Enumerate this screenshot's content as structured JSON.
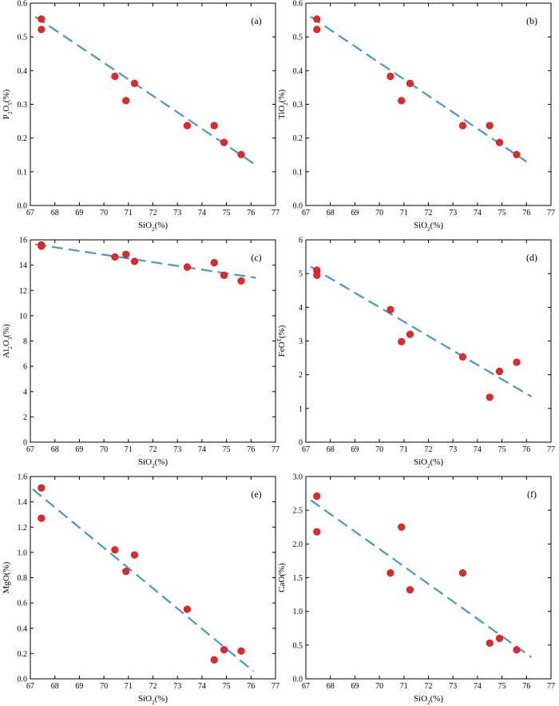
{
  "colors": {
    "point": "#e8262a",
    "point_edge": "#b51d1d",
    "trend": "#3f9ad4",
    "frame": "#000000"
  },
  "chart_data": [
    {
      "type": "scatter",
      "panel": "(a)",
      "xlabel": "SiO₂(%)",
      "ylabel": "P₂O₅(%)",
      "xlim": [
        67,
        77
      ],
      "ylim": [
        0,
        0.6
      ],
      "xticks": [
        "67",
        "68",
        "69",
        "70",
        "71",
        "72",
        "73",
        "74",
        "75",
        "76",
        "77"
      ],
      "yticks": [
        "0.0",
        "0.1",
        "0.2",
        "0.3",
        "0.4",
        "0.5",
        "0.6"
      ],
      "points": [
        {
          "x": 67.45,
          "y": 0.553
        },
        {
          "x": 67.45,
          "y": 0.522
        },
        {
          "x": 70.45,
          "y": 0.383
        },
        {
          "x": 70.9,
          "y": 0.311
        },
        {
          "x": 71.25,
          "y": 0.362
        },
        {
          "x": 73.4,
          "y": 0.237
        },
        {
          "x": 74.5,
          "y": 0.237
        },
        {
          "x": 74.9,
          "y": 0.187
        },
        {
          "x": 75.6,
          "y": 0.151
        }
      ],
      "trend": {
        "x0": 67.2,
        "y0": 0.56,
        "x1": 76.2,
        "y1": 0.12
      }
    },
    {
      "type": "scatter",
      "panel": "(b)",
      "xlabel": "SiO₂(%)",
      "ylabel": "TiO₂(%)",
      "xlim": [
        67,
        77
      ],
      "ylim": [
        0,
        0.6
      ],
      "xticks": [
        "67",
        "68",
        "69",
        "70",
        "71",
        "72",
        "73",
        "74",
        "75",
        "76",
        "77"
      ],
      "yticks": [
        "0.0",
        "0.1",
        "0.2",
        "0.3",
        "0.4",
        "0.5",
        "0.6"
      ],
      "points": [
        {
          "x": 67.45,
          "y": 0.553
        },
        {
          "x": 67.45,
          "y": 0.522
        },
        {
          "x": 70.45,
          "y": 0.383
        },
        {
          "x": 70.9,
          "y": 0.311
        },
        {
          "x": 71.25,
          "y": 0.362
        },
        {
          "x": 73.4,
          "y": 0.237
        },
        {
          "x": 74.5,
          "y": 0.237
        },
        {
          "x": 74.9,
          "y": 0.187
        },
        {
          "x": 75.6,
          "y": 0.151
        }
      ],
      "trend": {
        "x0": 67.2,
        "y0": 0.56,
        "x1": 76.0,
        "y1": 0.13
      }
    },
    {
      "type": "scatter",
      "panel": "(c)",
      "xlabel": "SiO₂(%)",
      "ylabel": "Al₂O₃(%)",
      "xlim": [
        67,
        77
      ],
      "ylim": [
        0,
        16
      ],
      "xticks": [
        "67",
        "68",
        "69",
        "70",
        "71",
        "72",
        "73",
        "74",
        "75",
        "76",
        "77"
      ],
      "yticks": [
        "0",
        "2",
        "4",
        "6",
        "8",
        "10",
        "12",
        "14",
        "16"
      ],
      "points": [
        {
          "x": 67.45,
          "y": 15.6
        },
        {
          "x": 67.45,
          "y": 15.5
        },
        {
          "x": 70.45,
          "y": 14.65
        },
        {
          "x": 70.9,
          "y": 14.85
        },
        {
          "x": 71.25,
          "y": 14.3
        },
        {
          "x": 73.4,
          "y": 13.85
        },
        {
          "x": 74.5,
          "y": 14.2
        },
        {
          "x": 74.9,
          "y": 13.2
        },
        {
          "x": 75.6,
          "y": 12.75
        }
      ],
      "trend": {
        "x0": 67.2,
        "y0": 15.65,
        "x1": 76.2,
        "y1": 13.0
      }
    },
    {
      "type": "scatter",
      "panel": "(d)",
      "xlabel": "SiO₂(%)",
      "ylabel": "FeOᵀ(%)",
      "xlim": [
        67,
        77
      ],
      "ylim": [
        0,
        6
      ],
      "xticks": [
        "67",
        "68",
        "69",
        "70",
        "71",
        "72",
        "73",
        "74",
        "75",
        "76",
        "77"
      ],
      "yticks": [
        "0",
        "1",
        "2",
        "3",
        "4",
        "5",
        "6"
      ],
      "points": [
        {
          "x": 67.45,
          "y": 5.1
        },
        {
          "x": 67.45,
          "y": 4.95
        },
        {
          "x": 70.45,
          "y": 3.93
        },
        {
          "x": 70.9,
          "y": 2.98
        },
        {
          "x": 71.25,
          "y": 3.2
        },
        {
          "x": 73.4,
          "y": 2.53
        },
        {
          "x": 74.5,
          "y": 1.33
        },
        {
          "x": 74.9,
          "y": 2.1
        },
        {
          "x": 75.6,
          "y": 2.37
        }
      ],
      "trend": {
        "x0": 67.2,
        "y0": 5.2,
        "x1": 76.2,
        "y1": 1.35
      }
    },
    {
      "type": "scatter",
      "panel": "(e)",
      "xlabel": "SiO₂(%)",
      "ylabel": "MgO(%)",
      "xlim": [
        67,
        77
      ],
      "ylim": [
        0,
        1.6
      ],
      "xticks": [
        "67",
        "68",
        "69",
        "70",
        "71",
        "72",
        "73",
        "74",
        "75",
        "76",
        "77"
      ],
      "yticks": [
        "0.0",
        "0.2",
        "0.4",
        "0.6",
        "0.8",
        "1.0",
        "1.2",
        "1.4",
        "1.6"
      ],
      "points": [
        {
          "x": 67.45,
          "y": 1.51
        },
        {
          "x": 67.45,
          "y": 1.27
        },
        {
          "x": 70.45,
          "y": 1.02
        },
        {
          "x": 70.9,
          "y": 0.85
        },
        {
          "x": 71.25,
          "y": 0.98
        },
        {
          "x": 73.4,
          "y": 0.55
        },
        {
          "x": 74.5,
          "y": 0.15
        },
        {
          "x": 74.9,
          "y": 0.23
        },
        {
          "x": 75.6,
          "y": 0.22
        }
      ],
      "trend": {
        "x0": 67.1,
        "y0": 1.5,
        "x1": 76.1,
        "y1": 0.06
      }
    },
    {
      "type": "scatter",
      "panel": "(f)",
      "xlabel": "SiO₂(%)",
      "ylabel": "CaO(%)",
      "xlim": [
        67,
        77
      ],
      "ylim": [
        0,
        3.0
      ],
      "xticks": [
        "67",
        "68",
        "69",
        "70",
        "71",
        "72",
        "73",
        "74",
        "75",
        "76",
        "77"
      ],
      "yticks": [
        "0.0",
        "0.5",
        "1.0",
        "1.5",
        "2.0",
        "2.5",
        "3.0"
      ],
      "points": [
        {
          "x": 67.45,
          "y": 2.71
        },
        {
          "x": 67.45,
          "y": 2.18
        },
        {
          "x": 70.45,
          "y": 1.57
        },
        {
          "x": 70.9,
          "y": 2.25
        },
        {
          "x": 71.25,
          "y": 1.32
        },
        {
          "x": 73.4,
          "y": 1.57
        },
        {
          "x": 74.5,
          "y": 0.53
        },
        {
          "x": 74.9,
          "y": 0.6
        },
        {
          "x": 75.6,
          "y": 0.43
        }
      ],
      "trend": {
        "x0": 67.2,
        "y0": 2.65,
        "x1": 76.2,
        "y1": 0.32
      }
    }
  ]
}
